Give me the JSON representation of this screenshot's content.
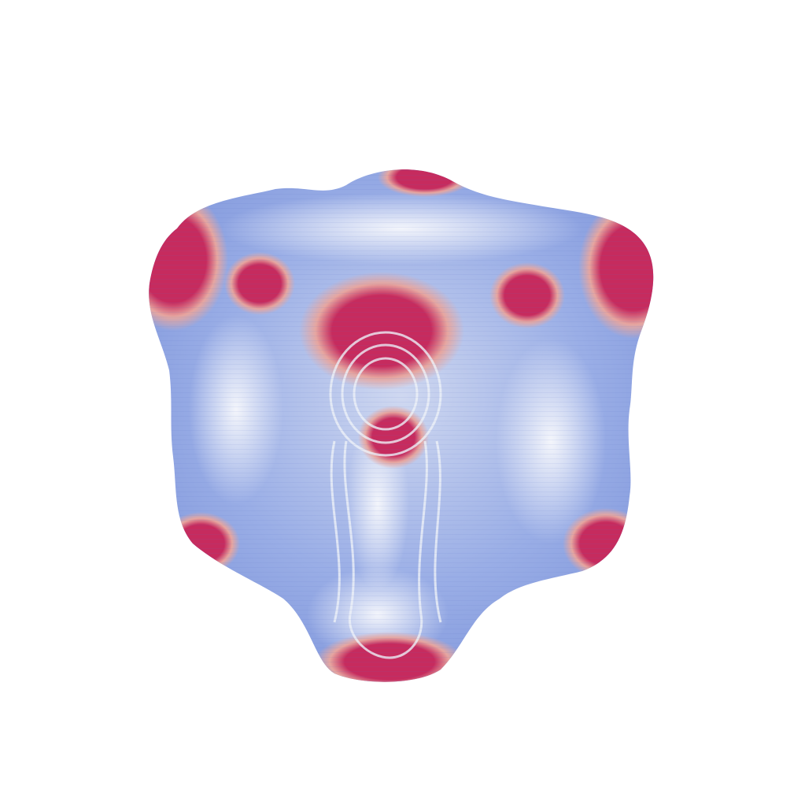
{
  "scene": {
    "background": "#ffffff",
    "object": "deformed-cube-surface",
    "colormap": {
      "low": "#6f86d6",
      "mid": "#e6ecf5",
      "high": "#c62b5e"
    }
  }
}
